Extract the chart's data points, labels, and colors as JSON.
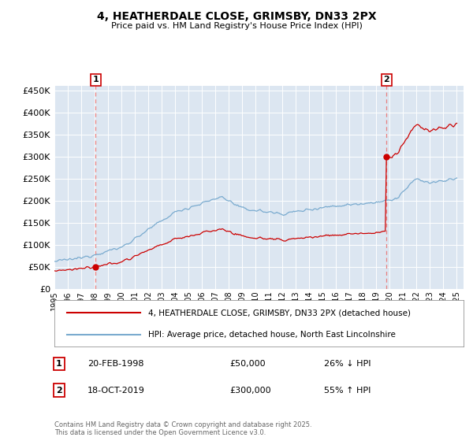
{
  "title": "4, HEATHERDALE CLOSE, GRIMSBY, DN33 2PX",
  "subtitle": "Price paid vs. HM Land Registry's House Price Index (HPI)",
  "legend_line1": "4, HEATHERDALE CLOSE, GRIMSBY, DN33 2PX (detached house)",
  "legend_line2": "HPI: Average price, detached house, North East Lincolnshire",
  "sale1_label": "1",
  "sale1_date": "20-FEB-1998",
  "sale1_price": "£50,000",
  "sale1_pct": "26% ↓ HPI",
  "sale1_t": 1998.083,
  "sale1_val": 50000,
  "sale2_label": "2",
  "sale2_date": "18-OCT-2019",
  "sale2_price": "£300,000",
  "sale2_pct": "55% ↑ HPI",
  "sale2_t": 2019.75,
  "sale2_val": 300000,
  "footer": "Contains HM Land Registry data © Crown copyright and database right 2025.\nThis data is licensed under the Open Government Licence v3.0.",
  "bg_color": "#dce6f1",
  "red_color": "#cc0000",
  "blue_color": "#7aabcf",
  "grid_color": "#ffffff",
  "dashed_color": "#e88080",
  "ylim_max": 460000,
  "ylim_min": 0,
  "xmin": 1995,
  "xmax": 2025.5
}
